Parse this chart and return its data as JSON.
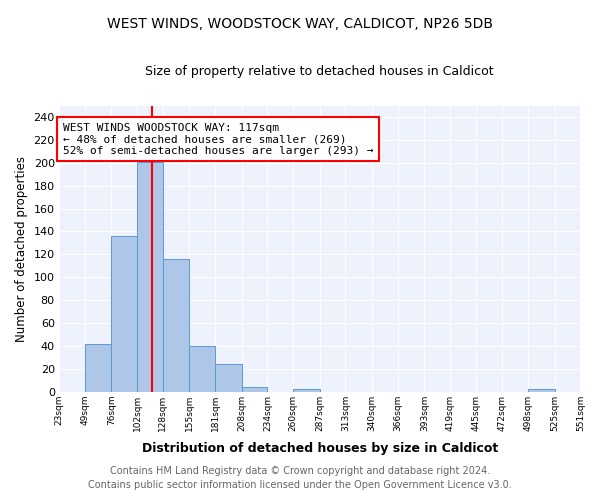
{
  "title1": "WEST WINDS, WOODSTOCK WAY, CALDICOT, NP26 5DB",
  "title2": "Size of property relative to detached houses in Caldicot",
  "xlabel": "Distribution of detached houses by size in Caldicot",
  "ylabel": "Number of detached properties",
  "bar_edges": [
    23,
    49,
    76,
    102,
    128,
    155,
    181,
    208,
    234,
    260,
    287,
    313,
    340,
    366,
    393,
    419,
    445,
    472,
    498,
    525,
    551
  ],
  "bar_heights": [
    0,
    42,
    136,
    201,
    116,
    40,
    24,
    4,
    0,
    2,
    0,
    0,
    0,
    0,
    0,
    0,
    0,
    0,
    2,
    0
  ],
  "bar_color": "#aec6e8",
  "bar_edgecolor": "#5b9bd5",
  "vline_x": 117,
  "vline_color": "red",
  "vline_linewidth": 1.5,
  "annotation_text": "WEST WINDS WOODSTOCK WAY: 117sqm\n← 48% of detached houses are smaller (269)\n52% of semi-detached houses are larger (293) →",
  "annotation_box_edgecolor": "red",
  "annotation_fontsize": 8,
  "ylim": [
    0,
    250
  ],
  "yticks": [
    0,
    20,
    40,
    60,
    80,
    100,
    120,
    140,
    160,
    180,
    200,
    220,
    240
  ],
  "xtick_labels": [
    "23sqm",
    "49sqm",
    "76sqm",
    "102sqm",
    "128sqm",
    "155sqm",
    "181sqm",
    "208sqm",
    "234sqm",
    "260sqm",
    "287sqm",
    "313sqm",
    "340sqm",
    "366sqm",
    "393sqm",
    "419sqm",
    "445sqm",
    "472sqm",
    "498sqm",
    "525sqm",
    "551sqm"
  ],
  "background_color": "#eef2fc",
  "grid_color": "white",
  "footnote1": "Contains HM Land Registry data © Crown copyright and database right 2024.",
  "footnote2": "Contains public sector information licensed under the Open Government Licence v3.0.",
  "footnote_fontsize": 7,
  "footnote_color": "#666666"
}
